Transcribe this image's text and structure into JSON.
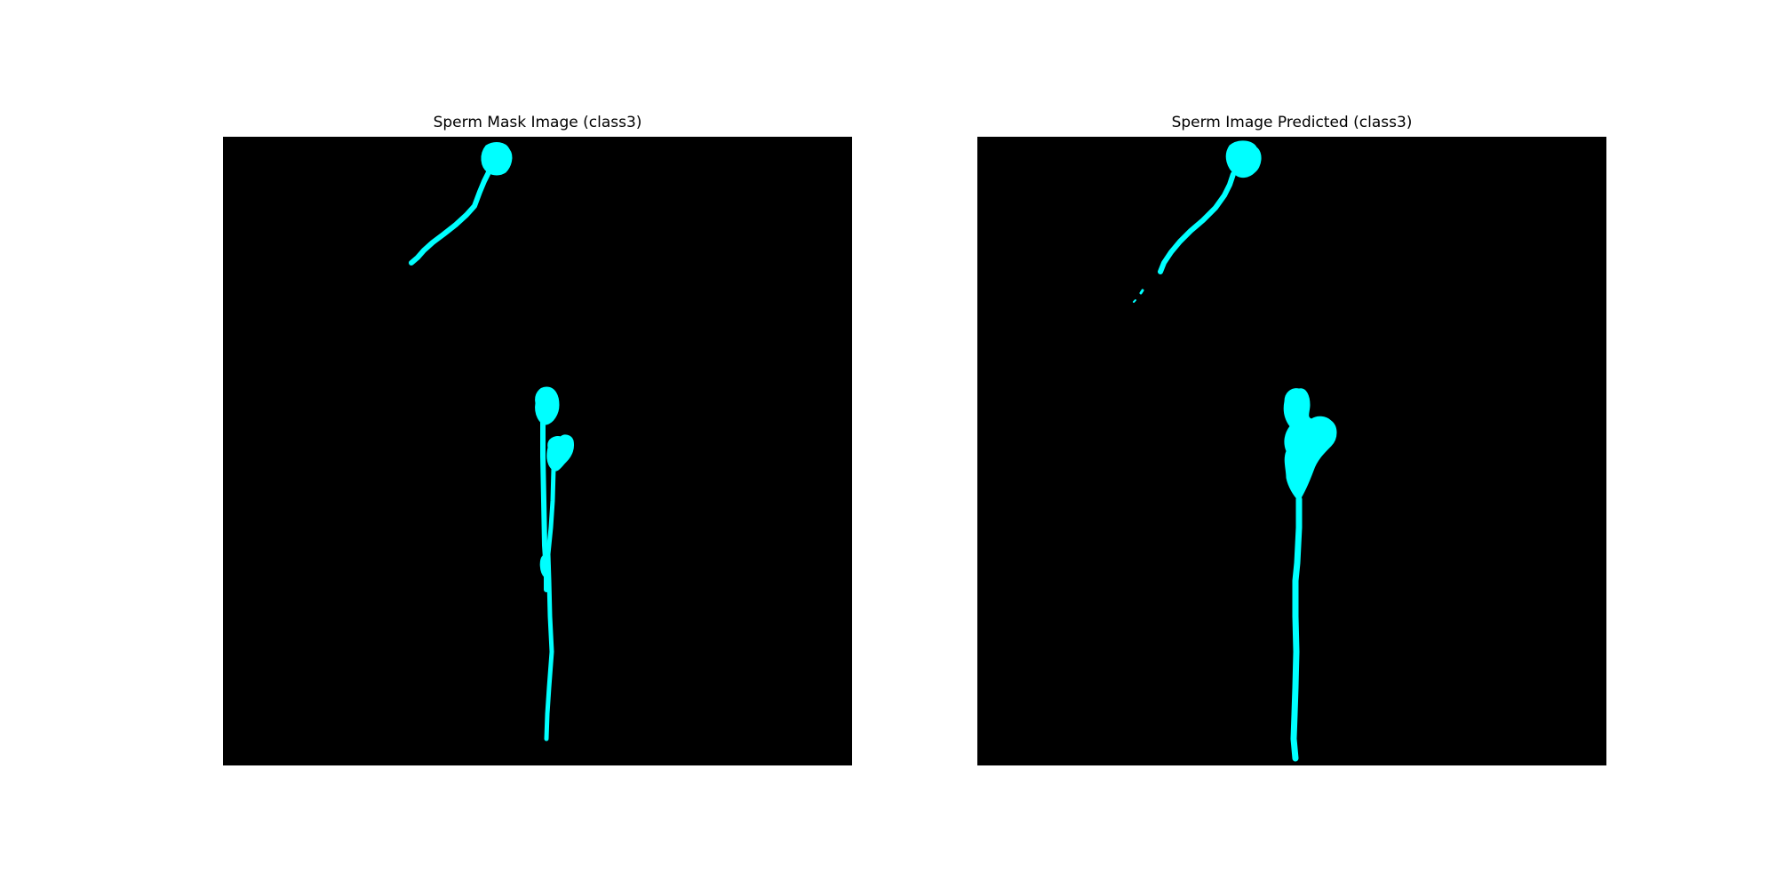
{
  "figure": {
    "left_title": "Sperm Mask Image (class3)",
    "right_title": "Sperm Image Predicted (class3)"
  },
  "colors": {
    "background": "#000000",
    "mask": "#00ffff",
    "figure_bg": "#ffffff"
  }
}
